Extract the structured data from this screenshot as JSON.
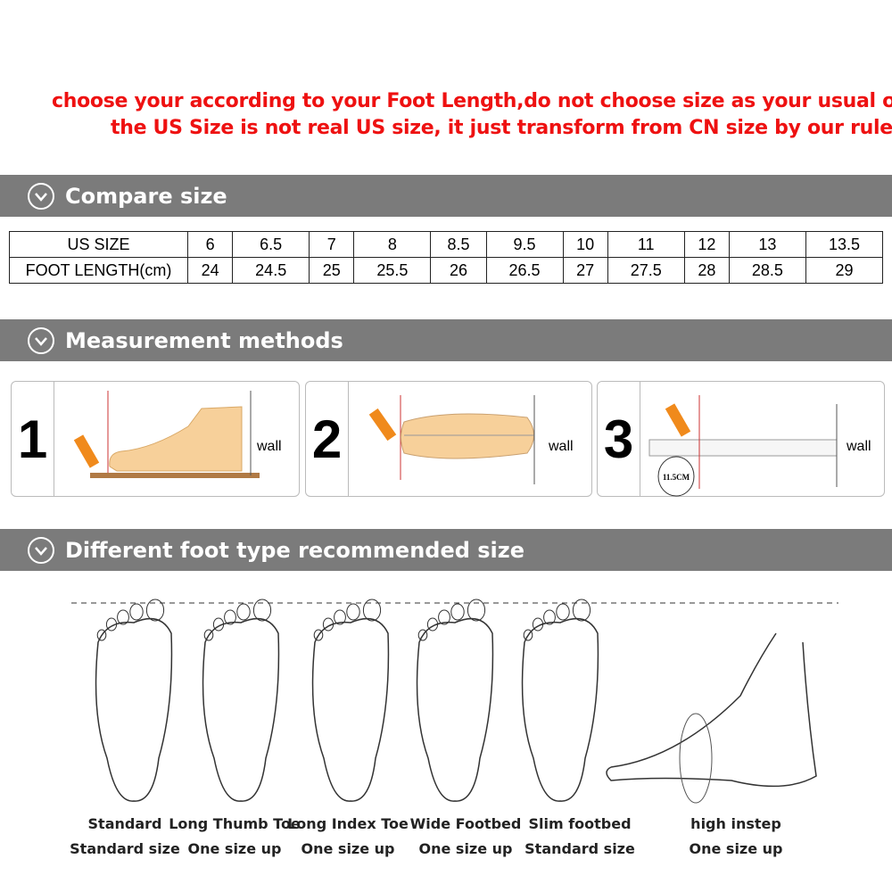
{
  "notice": {
    "line1": "choose your according to your Foot Length,do not choose size as your usual own",
    "line2": "the US Size is not real US size, it just transform from CN size by our rules",
    "color": "#ee1111"
  },
  "sections": {
    "compare": "Compare size",
    "measurement": "Measurement methods",
    "foot_types": "Different foot type recommended size"
  },
  "size_table": {
    "row_headers": [
      "US SIZE",
      "FOOT LENGTH(cm)"
    ],
    "us_size": [
      "6",
      "6.5",
      "7",
      "8",
      "8.5",
      "9.5",
      "10",
      "11",
      "12",
      "13",
      "13.5"
    ],
    "foot_length_cm": [
      "24",
      "24.5",
      "25",
      "25.5",
      "26",
      "26.5",
      "27",
      "27.5",
      "28",
      "28.5",
      "29"
    ]
  },
  "methods": [
    {
      "step": "1",
      "wall": "wall"
    },
    {
      "step": "2",
      "wall": "wall"
    },
    {
      "step": "3",
      "wall": "wall",
      "measure": "11.5CM"
    }
  ],
  "foot_types": [
    {
      "type": "Standard",
      "recommendation": "Standard size"
    },
    {
      "type": "Long Thumb Toe",
      "recommendation": "One size up"
    },
    {
      "type": "Long Index Toe",
      "recommendation": "One size up"
    },
    {
      "type": "Wide Footbed",
      "recommendation": "One size up"
    },
    {
      "type": "Slim footbed",
      "recommendation": "Standard size"
    },
    {
      "type": "high instep",
      "recommendation": "One size up"
    }
  ]
}
